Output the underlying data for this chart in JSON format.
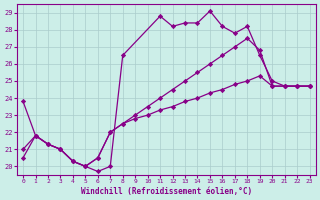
{
  "xlabel": "Windchill (Refroidissement éolien,°C)",
  "bg_color": "#cceee8",
  "line_color": "#880088",
  "grid_color": "#aacccc",
  "xlim_min": -0.5,
  "xlim_max": 23.5,
  "ylim_min": 19.5,
  "ylim_max": 29.5,
  "yticks": [
    20,
    21,
    22,
    23,
    24,
    25,
    26,
    27,
    28,
    29
  ],
  "xticks": [
    0,
    1,
    2,
    3,
    4,
    5,
    6,
    7,
    8,
    9,
    10,
    11,
    12,
    13,
    14,
    15,
    16,
    17,
    18,
    19,
    20,
    21,
    22,
    23
  ],
  "line1_x": [
    0,
    1,
    2,
    3,
    4,
    5,
    6,
    7,
    8,
    11,
    12,
    13,
    14,
    15,
    16,
    17,
    18,
    19,
    20,
    21,
    22,
    23
  ],
  "line1_y": [
    23.8,
    21.8,
    21.3,
    21.0,
    20.3,
    20.0,
    19.7,
    20.0,
    26.5,
    28.8,
    28.2,
    28.4,
    28.4,
    29.1,
    28.2,
    27.8,
    28.2,
    26.5,
    25.0,
    24.7,
    24.7,
    24.7
  ],
  "line2_x": [
    0,
    1,
    2,
    3,
    4,
    5,
    6,
    7,
    8,
    9,
    10,
    11,
    12,
    13,
    14,
    15,
    16,
    17,
    18,
    19,
    20,
    21,
    22,
    23
  ],
  "line2_y": [
    21.0,
    21.8,
    21.3,
    21.0,
    20.3,
    20.0,
    20.5,
    22.0,
    22.5,
    22.8,
    23.0,
    23.3,
    23.5,
    23.8,
    24.0,
    24.3,
    24.5,
    24.8,
    25.0,
    25.3,
    24.7,
    24.7,
    24.7,
    24.7
  ],
  "line3_x": [
    0,
    1,
    2,
    3,
    4,
    5,
    6,
    7,
    8,
    9,
    10,
    11,
    12,
    13,
    14,
    15,
    16,
    17,
    18,
    19,
    20,
    21,
    22,
    23
  ],
  "line3_y": [
    20.5,
    21.8,
    21.3,
    21.0,
    20.3,
    20.0,
    20.5,
    22.0,
    22.5,
    23.0,
    23.5,
    24.0,
    24.5,
    25.0,
    25.5,
    26.0,
    26.5,
    27.0,
    27.5,
    26.8,
    24.7,
    24.7,
    24.7,
    24.7
  ]
}
